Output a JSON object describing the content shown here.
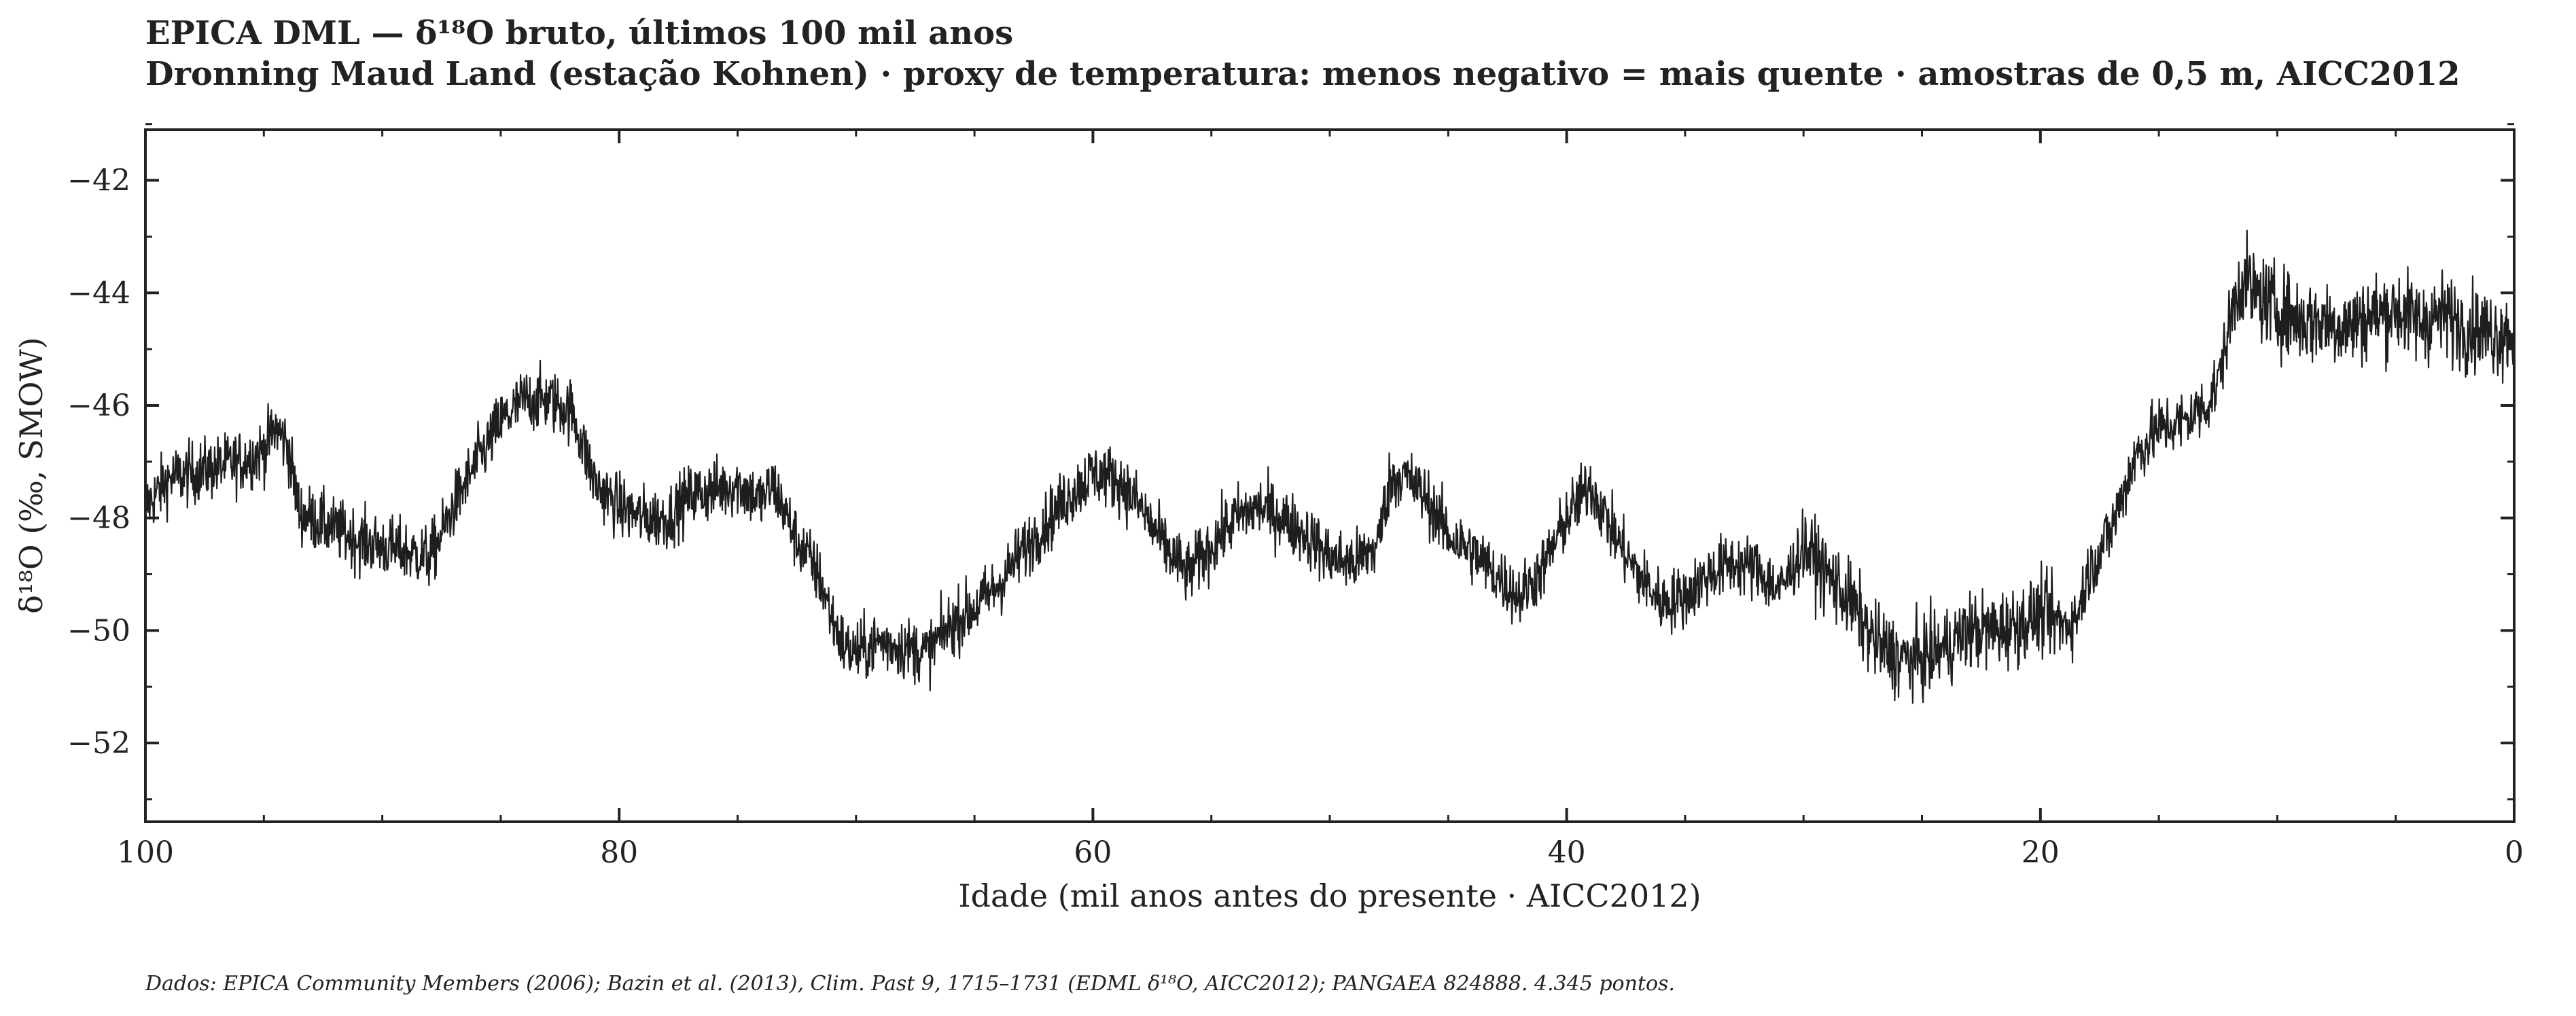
{
  "title": "EPICA DML — δ¹⁸O bruto, últimos 100 mil anos",
  "subtitle": "Dronning Maud Land (estação Kohnen) · proxy de temperatura: menos negativo = mais quente · amostras de 0,5 m, AICC2012",
  "source_note": "Dados: EPICA Community Members (2006); Bazin et al. (2013), Clim. Past 9, 1715–1731 (EDML δ¹⁸O, AICC2012); PANGAEA 824888. 4.345 pontos.",
  "colors": {
    "line": "#1e1e1e",
    "axis": "#222222",
    "background": "#ffffff"
  },
  "chart_data": {
    "type": "line",
    "xlabel": "Idade (mil anos antes do presente · AICC2012)",
    "ylabel": "δ¹⁸O (‰, SMOW)",
    "xlim": [
      100,
      0
    ],
    "ylim": [
      -53.4,
      -41.1
    ],
    "x_reversed": true,
    "x_ticks": [
      100,
      80,
      60,
      40,
      20,
      0
    ],
    "x_tick_labels": [
      "100",
      "80",
      "60",
      "40",
      "20",
      "0"
    ],
    "y_ticks": [
      -42,
      -44,
      -46,
      -48,
      -50,
      -52
    ],
    "y_tick_labels": [
      "−42",
      "−44",
      "−46",
      "−48",
      "−50",
      "−52"
    ],
    "grid": false,
    "n_points": 4345,
    "series": [
      {
        "x": [
          100,
          99,
          98,
          97,
          96,
          95,
          94.5,
          94,
          93.5,
          93,
          92,
          91,
          90,
          89,
          88,
          87.5,
          87,
          86,
          85,
          84,
          83,
          82,
          81,
          80,
          79,
          78,
          77,
          76,
          75,
          74,
          73.5,
          73,
          72.5,
          72,
          71.5,
          71,
          70.5,
          70,
          69,
          68,
          67,
          66,
          65,
          64,
          63,
          62,
          61,
          60,
          59,
          58,
          57,
          56,
          55,
          54,
          53,
          52,
          51,
          50,
          49,
          48,
          47.5,
          47,
          46.5,
          46,
          45,
          44,
          43,
          42,
          41,
          40,
          39,
          38,
          37,
          36,
          35,
          34,
          33,
          32,
          31,
          30,
          29,
          28,
          27,
          26,
          25,
          24,
          23,
          22,
          21,
          20,
          19,
          18.5,
          18,
          17,
          16,
          15,
          14,
          13,
          12.5,
          12,
          11.5,
          11,
          10,
          9,
          8,
          7,
          6,
          5,
          4,
          3,
          2,
          1,
          0
        ],
        "y": [
          -47.8,
          -47.3,
          -47.2,
          -47.1,
          -47.0,
          -46.8,
          -46.4,
          -46.7,
          -47.9,
          -48.0,
          -48.2,
          -48.4,
          -48.5,
          -48.6,
          -48.7,
          -48.3,
          -47.8,
          -47.0,
          -46.3,
          -45.9,
          -45.9,
          -46.1,
          -47.4,
          -47.8,
          -48.0,
          -48.0,
          -47.6,
          -47.5,
          -47.4,
          -47.7,
          -47.4,
          -47.9,
          -48.4,
          -48.7,
          -49.1,
          -49.8,
          -50.3,
          -50.4,
          -50.2,
          -50.3,
          -50.4,
          -49.9,
          -49.6,
          -49.2,
          -48.6,
          -48.1,
          -47.6,
          -47.2,
          -47.3,
          -47.8,
          -48.5,
          -49.0,
          -48.5,
          -48.0,
          -47.8,
          -48.0,
          -48.3,
          -48.7,
          -48.8,
          -48.5,
          -47.4,
          -47.2,
          -47.4,
          -47.6,
          -48.3,
          -48.6,
          -49.0,
          -49.4,
          -48.9,
          -48.0,
          -47.4,
          -48.3,
          -49.0,
          -49.5,
          -49.4,
          -49.0,
          -48.8,
          -48.9,
          -49.3,
          -48.5,
          -49.0,
          -49.5,
          -50.2,
          -50.5,
          -50.5,
          -50.3,
          -50.0,
          -50.0,
          -49.9,
          -49.7,
          -49.9,
          -49.8,
          -49.0,
          -48.2,
          -46.9,
          -46.4,
          -46.3,
          -46.0,
          -45.6,
          -44.5,
          -43.7,
          -44.0,
          -44.3,
          -44.5,
          -44.5,
          -44.6,
          -44.4,
          -44.3,
          -44.5,
          -44.4,
          -44.6,
          -44.7,
          -44.7
        ]
      }
    ]
  }
}
